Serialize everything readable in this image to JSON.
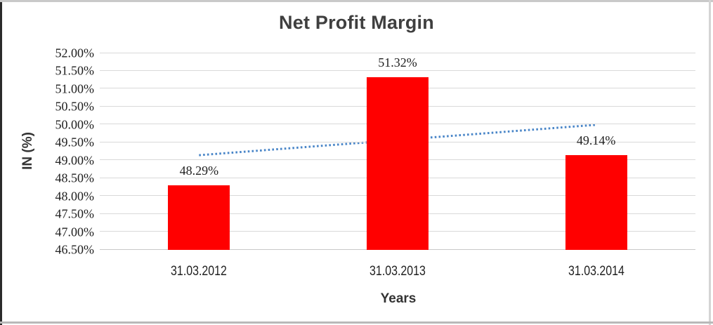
{
  "chart_data": {
    "type": "bar",
    "title": "Net Profit Margin",
    "xlabel": "Years",
    "ylabel": "IN (%)",
    "categories": [
      "31.03.2012",
      "31.03.2013",
      "31.03.2014"
    ],
    "series": [
      {
        "name": "Net Profit Margin",
        "values": [
          48.29,
          51.32,
          49.14
        ]
      }
    ],
    "data_labels": [
      "48.29%",
      "51.32%",
      "49.14%"
    ],
    "y_ticks": [
      "52.00%",
      "51.50%",
      "51.00%",
      "50.50%",
      "50.00%",
      "49.50%",
      "49.00%",
      "48.50%",
      "48.00%",
      "47.50%",
      "47.00%",
      "46.50%"
    ],
    "y_min": 46.5,
    "y_max": 52.0,
    "y_step": 0.5,
    "ylim": [
      46.5,
      52.0
    ],
    "grid": true,
    "legend_position": "none",
    "trendline": {
      "style": "dotted",
      "start_value": 49.16,
      "end_value": 50.01
    },
    "colors": {
      "bar": "#ff0000",
      "gridline": "#d9d9d9",
      "baseline": "#c9c9c9",
      "title_text": "#3f3f3f",
      "axis_title_text": "#333333",
      "tick_text": "#1f1f1f",
      "trendline": "#4a86c8"
    }
  }
}
